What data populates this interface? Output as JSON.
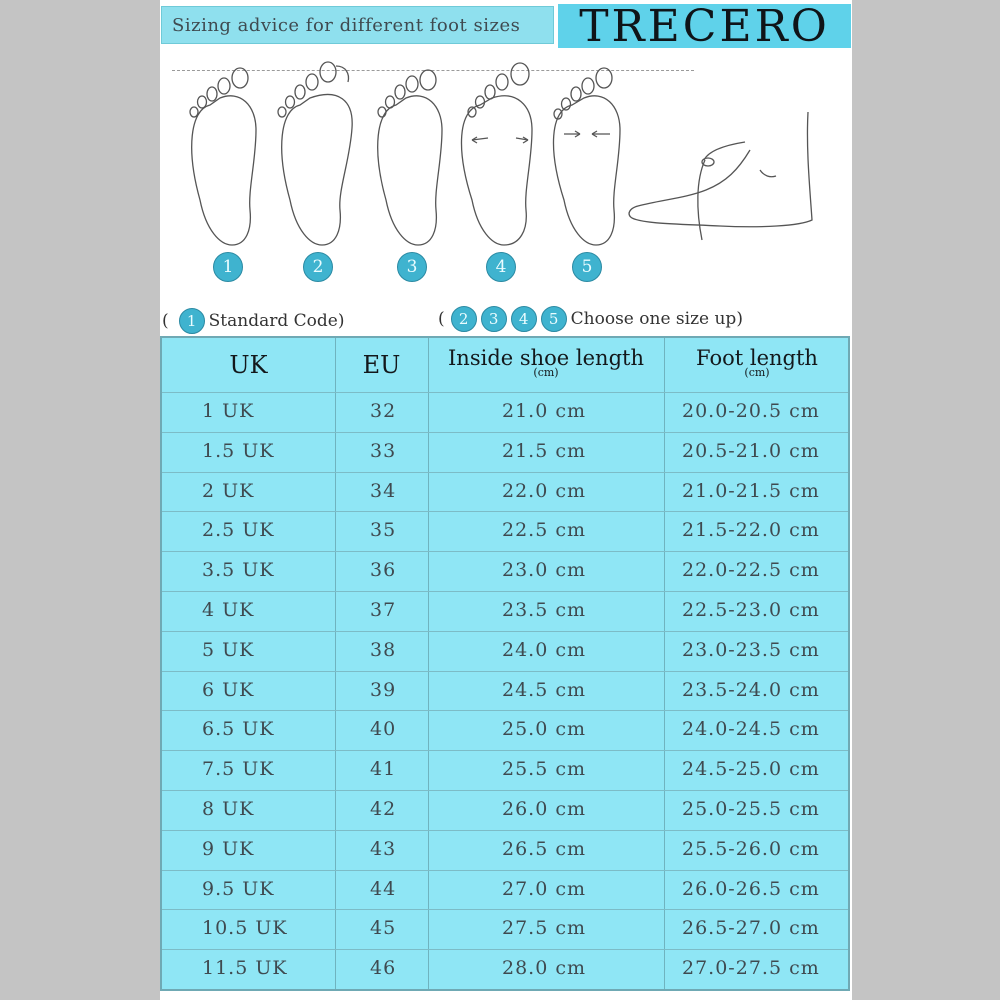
{
  "banner": "Sizing advice for different foot sizes",
  "brand": "TRECERO",
  "foot_markers": [
    "1",
    "2",
    "3",
    "4",
    "5"
  ],
  "legend": {
    "standard_badge": "1",
    "standard_text": "Standard Code",
    "upsize_badges": [
      "2",
      "3",
      "4",
      "5"
    ],
    "upsize_text": "Choose one size up"
  },
  "table": {
    "headers": {
      "uk": "UK",
      "eu": "EU",
      "inside": "Inside shoe length",
      "inside_unit": "(cm)",
      "foot": "Foot length",
      "foot_unit": "(cm)"
    },
    "rows": [
      {
        "uk": "1 UK",
        "eu": "32",
        "inside": "21.0 cm",
        "foot": "20.0-20.5 cm"
      },
      {
        "uk": "1.5 UK",
        "eu": "33",
        "inside": "21.5 cm",
        "foot": "20.5-21.0 cm"
      },
      {
        "uk": "2 UK",
        "eu": "34",
        "inside": "22.0 cm",
        "foot": "21.0-21.5 cm"
      },
      {
        "uk": "2.5 UK",
        "eu": "35",
        "inside": "22.5 cm",
        "foot": "21.5-22.0 cm"
      },
      {
        "uk": "3.5 UK",
        "eu": "36",
        "inside": "23.0 cm",
        "foot": "22.0-22.5 cm"
      },
      {
        "uk": "4 UK",
        "eu": "37",
        "inside": "23.5 cm",
        "foot": "22.5-23.0 cm"
      },
      {
        "uk": "5 UK",
        "eu": "38",
        "inside": "24.0 cm",
        "foot": "23.0-23.5 cm"
      },
      {
        "uk": "6 UK",
        "eu": "39",
        "inside": "24.5 cm",
        "foot": "23.5-24.0 cm"
      },
      {
        "uk": "6.5 UK",
        "eu": "40",
        "inside": "25.0 cm",
        "foot": "24.0-24.5 cm"
      },
      {
        "uk": "7.5 UK",
        "eu": "41",
        "inside": "25.5 cm",
        "foot": "24.5-25.0 cm"
      },
      {
        "uk": "8 UK",
        "eu": "42",
        "inside": "26.0 cm",
        "foot": "25.0-25.5 cm"
      },
      {
        "uk": "9 UK",
        "eu": "43",
        "inside": "26.5 cm",
        "foot": "25.5-26.0 cm"
      },
      {
        "uk": "9.5 UK",
        "eu": "44",
        "inside": "27.0 cm",
        "foot": "26.0-26.5 cm"
      },
      {
        "uk": "10.5 UK",
        "eu": "45",
        "inside": "27.5 cm",
        "foot": "26.5-27.0 cm"
      },
      {
        "uk": "11.5 UK",
        "eu": "46",
        "inside": "28.0 cm",
        "foot": "27.0-27.5 cm"
      }
    ]
  },
  "colors": {
    "table_bg": "#8fe6f5",
    "brand_bg": "#5fd2ea",
    "badge": "#3fb3cf"
  }
}
